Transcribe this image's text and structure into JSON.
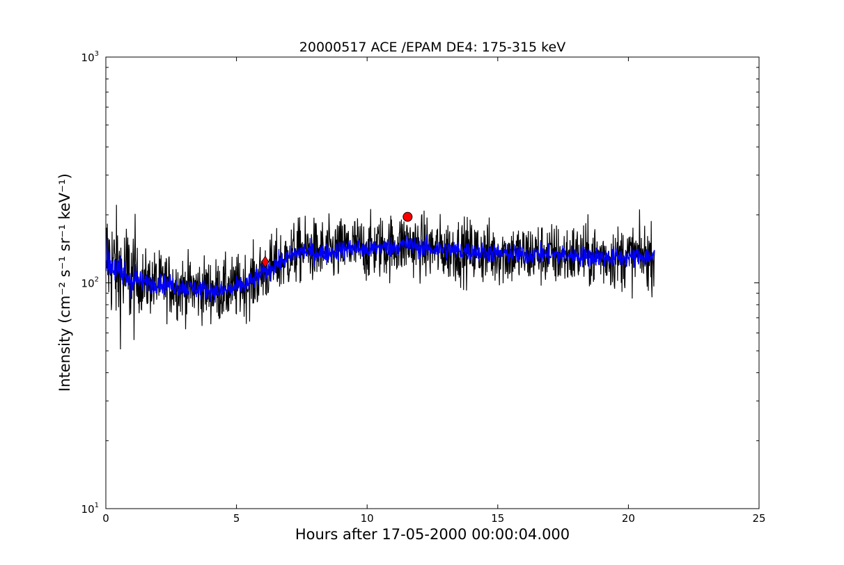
{
  "chart_data": {
    "type": "line",
    "title": "20000517 ACE /EPAM DE4: 175-315 keV",
    "xlabel": "Hours after 17-05-2000 00:00:04.000",
    "ylabel": "Intensity (cm⁻² s⁻¹ sr⁻¹ keV⁻¹)",
    "xlim": [
      0,
      25
    ],
    "ylim": [
      10,
      1000
    ],
    "yscale": "log",
    "grid": false,
    "x_ticks": [
      {
        "value": 0,
        "label": "0"
      },
      {
        "value": 5,
        "label": "5"
      },
      {
        "value": 10,
        "label": "10"
      },
      {
        "value": 15,
        "label": "15"
      },
      {
        "value": 20,
        "label": "20"
      },
      {
        "value": 25,
        "label": "25"
      }
    ],
    "y_ticks": [
      {
        "value": 10,
        "base": "10",
        "exp": "1"
      },
      {
        "value": 100,
        "base": "10",
        "exp": "2"
      },
      {
        "value": 1000,
        "base": "10",
        "exp": "3"
      }
    ],
    "series": [
      {
        "style": "raw",
        "color": "#000000",
        "x": [
          0.0,
          0.5,
          1.0,
          1.5,
          2.0,
          2.5,
          3.0,
          3.5,
          4.0,
          4.5,
          5.0,
          5.5,
          6.0,
          6.5,
          7.0,
          7.5,
          8.0,
          8.5,
          9.0,
          9.5,
          10.0,
          10.5,
          11.0,
          11.5,
          12.0,
          12.5,
          13.0,
          13.5,
          14.0,
          14.5,
          15.0,
          15.5,
          16.0,
          16.5,
          17.0,
          17.5,
          18.0,
          18.5,
          19.0,
          19.5,
          20.0,
          20.5,
          21.0
        ],
        "y": [
          130,
          110,
          105,
          100,
          100,
          98,
          95,
          94,
          93,
          92,
          95,
          100,
          110,
          120,
          130,
          140,
          138,
          136,
          140,
          145,
          140,
          145,
          145,
          150,
          145,
          142,
          140,
          140,
          138,
          136,
          135,
          134,
          133,
          135,
          133,
          132,
          133,
          132,
          131,
          130,
          130,
          132,
          130
        ]
      },
      {
        "style": "smoothed",
        "color": "#0000ff",
        "x": [
          0.0,
          0.5,
          1.0,
          1.5,
          2.0,
          2.5,
          3.0,
          3.5,
          4.0,
          4.5,
          5.0,
          5.5,
          6.0,
          6.5,
          7.0,
          7.5,
          8.0,
          8.5,
          9.0,
          9.5,
          10.0,
          10.5,
          11.0,
          11.5,
          12.0,
          12.5,
          13.0,
          13.5,
          14.0,
          14.5,
          15.0,
          15.5,
          16.0,
          16.5,
          17.0,
          17.5,
          18.0,
          18.5,
          19.0,
          19.5,
          20.0,
          20.5,
          21.0
        ],
        "y": [
          128,
          110,
          104,
          100,
          100,
          98,
          95,
          94,
          93,
          92,
          95,
          100,
          110,
          120,
          130,
          138,
          136,
          135,
          140,
          143,
          140,
          144,
          144,
          148,
          144,
          141,
          140,
          139,
          137,
          136,
          135,
          134,
          133,
          134,
          133,
          132,
          132,
          131,
          130,
          130,
          130,
          131,
          130
        ]
      }
    ],
    "markers": [
      {
        "shape": "diamond",
        "color": "#ff0000",
        "x": 6.1,
        "y": 124
      },
      {
        "shape": "circle",
        "color": "#ff0000",
        "x": 11.55,
        "y": 196
      }
    ]
  }
}
